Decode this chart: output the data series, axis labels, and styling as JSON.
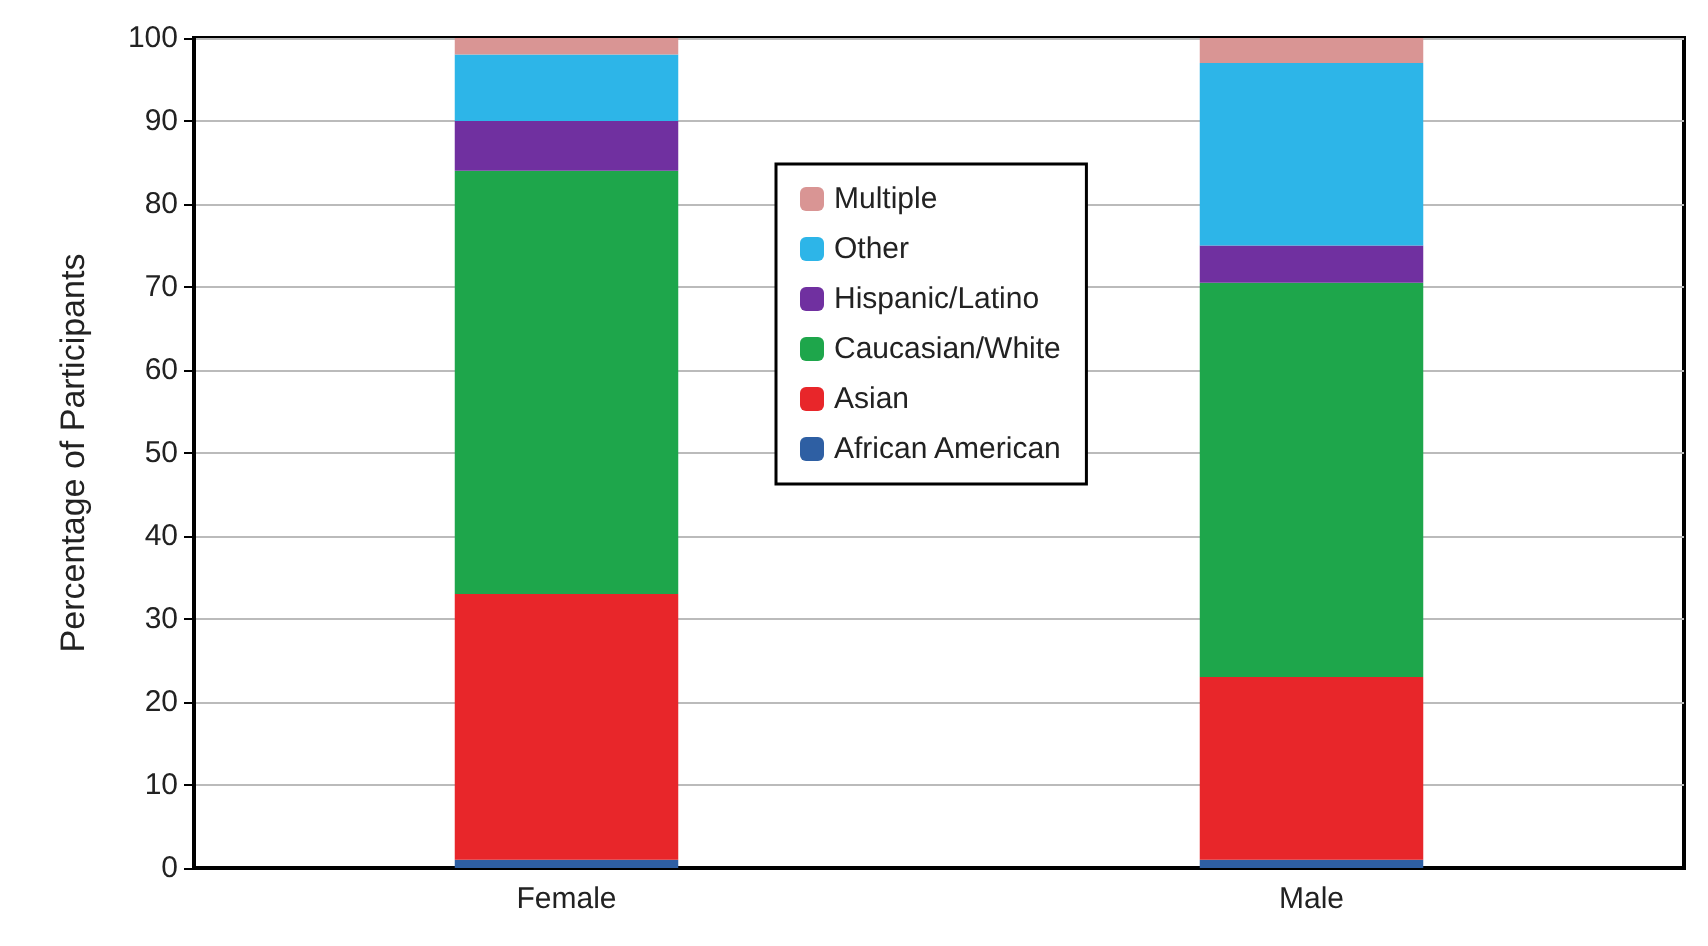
{
  "chart_data": {
    "type": "bar",
    "stacked": true,
    "ylabel": "Percentage of Participants",
    "categories": [
      "Female",
      "Male"
    ],
    "series": [
      {
        "name": "African American",
        "color": "#2e5fa3",
        "values": [
          1,
          1
        ]
      },
      {
        "name": "Asian",
        "color": "#e8262a",
        "values": [
          32,
          22
        ]
      },
      {
        "name": "Caucasian/White",
        "color": "#1ea64b",
        "values": [
          51,
          47.5
        ]
      },
      {
        "name": "Hispanic/Latino",
        "color": "#7030a0",
        "values": [
          6,
          4.5
        ]
      },
      {
        "name": "Other",
        "color": "#2db5e8",
        "values": [
          8,
          22
        ]
      },
      {
        "name": "Multiple",
        "color": "#d99594",
        "values": [
          2,
          3
        ]
      }
    ],
    "ylim": [
      0,
      100
    ],
    "yticks": [
      0,
      10,
      20,
      30,
      40,
      50,
      60,
      70,
      80,
      90,
      100
    ],
    "grid": "y",
    "legend": "top"
  }
}
